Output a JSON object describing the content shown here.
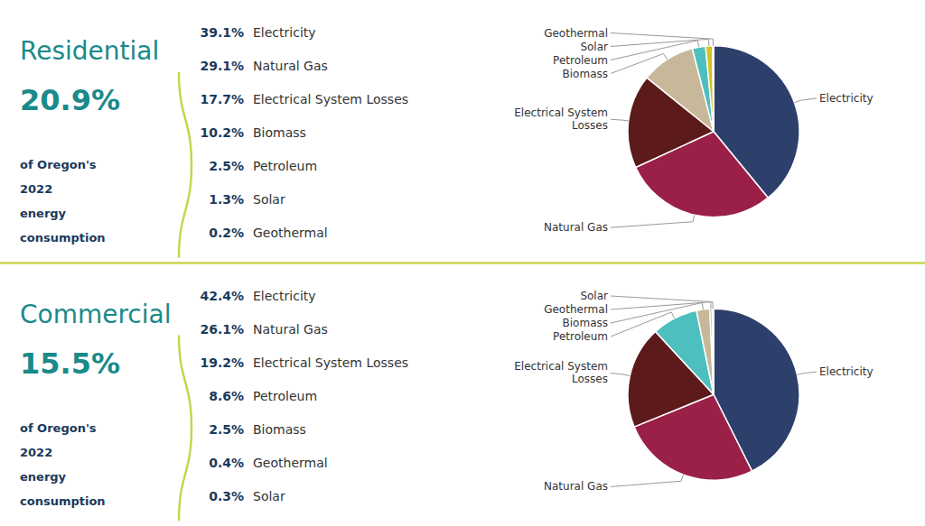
{
  "chart_data": [
    {
      "type": "pie",
      "title": "Residential",
      "subtitle": "20.9%",
      "annotations": [
        "of Oregon's",
        "2022",
        "energy",
        "consumption"
      ],
      "categories": [
        "Electricity",
        "Natural Gas",
        "Electrical System Losses",
        "Biomass",
        "Petroleum",
        "Solar",
        "Geothermal"
      ],
      "values": [
        39.1,
        29.1,
        17.7,
        10.2,
        2.5,
        1.3,
        0.2
      ],
      "value_labels": [
        "39.1%",
        "29.1%",
        "17.7%",
        "10.2%",
        "2.5%",
        "1.3%",
        "0.2%"
      ],
      "colors": [
        "#2d3f6b",
        "#9b2048",
        "#5c1a1a",
        "#c8b89a",
        "#4ebfbf",
        "#d4c020",
        "#888888"
      ],
      "data_labels": true
    },
    {
      "type": "pie",
      "title": "Commercial",
      "subtitle": "15.5%",
      "annotations": [
        "of Oregon's",
        "2022",
        "energy",
        "consumption"
      ],
      "categories": [
        "Electricity",
        "Natural Gas",
        "Electrical System Losses",
        "Petroleum",
        "Biomass",
        "Geothermal",
        "Solar"
      ],
      "values": [
        42.4,
        26.1,
        19.2,
        8.6,
        2.5,
        0.4,
        0.3
      ],
      "value_labels": [
        "42.4%",
        "26.1%",
        "19.2%",
        "8.6%",
        "2.5%",
        "0.4%",
        "0.3%"
      ],
      "colors": [
        "#2d3f6b",
        "#9b2048",
        "#5c1a1a",
        "#4ebfbf",
        "#c8b89a",
        "#888888",
        "#d4c020"
      ],
      "data_labels": true
    }
  ]
}
